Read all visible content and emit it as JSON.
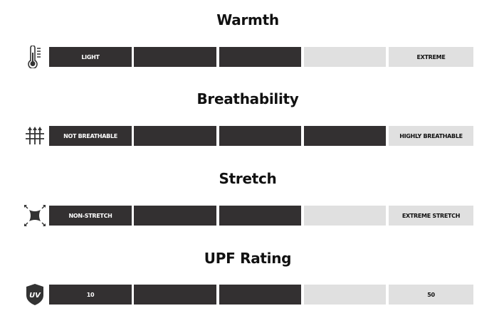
{
  "colors": {
    "filled": "#333031",
    "empty": "#e0e0e0"
  },
  "attributes": [
    {
      "title": "Warmth",
      "icon": "thermometer-icon",
      "min_label": "LIGHT",
      "max_label": "EXTREME",
      "level": 3,
      "scale": 5
    },
    {
      "title": "Breathability",
      "icon": "breathable-arrows-icon",
      "min_label": "NOT BREATHABLE",
      "max_label": "HIGHLY BREATHABLE",
      "level": 4,
      "scale": 5
    },
    {
      "title": "Stretch",
      "icon": "stretch-arrows-icon",
      "min_label": "NON-STRETCH",
      "max_label": "EXTREME STRETCH",
      "level": 3,
      "scale": 5
    },
    {
      "title": "UPF Rating",
      "icon": "uv-shield-icon",
      "icon_text": "UV",
      "min_label": "10",
      "max_label": "50",
      "level": 3,
      "scale": 5
    }
  ]
}
